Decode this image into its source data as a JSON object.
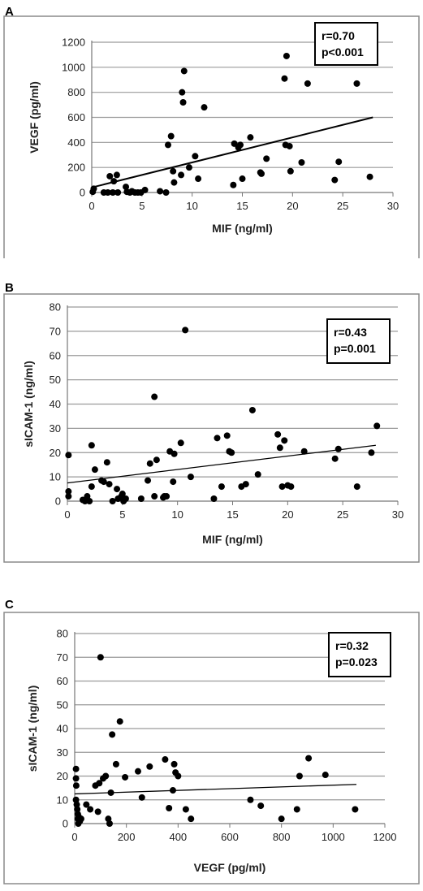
{
  "chart_data": [
    {
      "panel": "A",
      "type": "scatter",
      "xlabel": "MIF (ng/ml)",
      "ylabel": "VEGF (pg/ml)",
      "xlim": [
        0,
        30
      ],
      "ylim": [
        0,
        1200
      ],
      "xticks": [
        "0",
        "5",
        "10",
        "15",
        "20",
        "25",
        "30"
      ],
      "yticks": [
        "0",
        "200",
        "400",
        "600",
        "800",
        "1000",
        "1200"
      ],
      "grid": "horizontal",
      "annotation": [
        "r=0.70",
        "p<0.001"
      ],
      "trendline": {
        "x": [
          0,
          28
        ],
        "y": [
          40,
          600
        ]
      },
      "points": [
        [
          0.1,
          5
        ],
        [
          0.2,
          30
        ],
        [
          1.2,
          0
        ],
        [
          1.6,
          0
        ],
        [
          1.8,
          130
        ],
        [
          2.1,
          0
        ],
        [
          2.2,
          90
        ],
        [
          2.5,
          140
        ],
        [
          2.6,
          0
        ],
        [
          3.4,
          45
        ],
        [
          3.5,
          5
        ],
        [
          3.8,
          0
        ],
        [
          4.0,
          10
        ],
        [
          4.3,
          0
        ],
        [
          4.6,
          0
        ],
        [
          4.9,
          0
        ],
        [
          5.3,
          20
        ],
        [
          6.8,
          10
        ],
        [
          7.4,
          0
        ],
        [
          7.6,
          380
        ],
        [
          7.9,
          450
        ],
        [
          8.1,
          170
        ],
        [
          8.2,
          80
        ],
        [
          8.9,
          140
        ],
        [
          9.0,
          800
        ],
        [
          9.1,
          720
        ],
        [
          9.2,
          970
        ],
        [
          9.7,
          200
        ],
        [
          10.3,
          290
        ],
        [
          10.6,
          110
        ],
        [
          11.2,
          680
        ],
        [
          14.1,
          60
        ],
        [
          14.2,
          390
        ],
        [
          14.6,
          360
        ],
        [
          14.8,
          380
        ],
        [
          15.0,
          110
        ],
        [
          15.8,
          440
        ],
        [
          16.8,
          160
        ],
        [
          16.9,
          150
        ],
        [
          17.4,
          270
        ],
        [
          19.2,
          910
        ],
        [
          19.4,
          1090
        ],
        [
          19.3,
          380
        ],
        [
          19.7,
          370
        ],
        [
          19.8,
          170
        ],
        [
          20.9,
          240
        ],
        [
          21.5,
          870
        ],
        [
          24.2,
          100
        ],
        [
          24.6,
          245
        ],
        [
          26.4,
          870
        ],
        [
          27.7,
          125
        ]
      ]
    },
    {
      "panel": "B",
      "type": "scatter",
      "xlabel": "MIF (ng/ml)",
      "ylabel": "sICAM-1 (ng/ml)",
      "xlim": [
        0,
        30
      ],
      "ylim": [
        0,
        80
      ],
      "xticks": [
        "0",
        "5",
        "10",
        "15",
        "20",
        "25",
        "30"
      ],
      "yticks": [
        "0",
        "10",
        "20",
        "30",
        "40",
        "50",
        "60",
        "70",
        "80"
      ],
      "grid": "horizontal",
      "annotation": [
        "r=0.43",
        "p=0.001"
      ],
      "trendline": {
        "x": [
          0,
          28
        ],
        "y": [
          7.5,
          23
        ]
      },
      "points": [
        [
          0.1,
          19
        ],
        [
          0.1,
          4
        ],
        [
          0.1,
          2
        ],
        [
          1.4,
          0.5
        ],
        [
          1.6,
          0
        ],
        [
          1.8,
          2
        ],
        [
          2.0,
          0
        ],
        [
          2.2,
          6
        ],
        [
          2.2,
          23
        ],
        [
          2.5,
          13
        ],
        [
          3.1,
          8.5
        ],
        [
          3.3,
          8
        ],
        [
          3.6,
          16
        ],
        [
          3.8,
          7
        ],
        [
          4.1,
          0
        ],
        [
          4.5,
          5
        ],
        [
          4.6,
          1
        ],
        [
          4.9,
          2
        ],
        [
          5.0,
          3
        ],
        [
          5.1,
          0
        ],
        [
          5.3,
          1
        ],
        [
          6.7,
          1
        ],
        [
          7.3,
          8.5
        ],
        [
          7.5,
          15.5
        ],
        [
          7.9,
          43
        ],
        [
          7.9,
          2
        ],
        [
          8.1,
          17
        ],
        [
          8.7,
          1.5
        ],
        [
          8.8,
          2
        ],
        [
          9.0,
          2
        ],
        [
          9.3,
          20.5
        ],
        [
          9.6,
          8
        ],
        [
          9.7,
          19.5
        ],
        [
          10.3,
          24
        ],
        [
          10.7,
          70.5
        ],
        [
          11.2,
          10
        ],
        [
          13.3,
          1
        ],
        [
          13.6,
          26
        ],
        [
          14.0,
          6
        ],
        [
          14.5,
          27
        ],
        [
          14.7,
          20.5
        ],
        [
          14.9,
          20
        ],
        [
          15.8,
          6
        ],
        [
          16.2,
          7
        ],
        [
          16.8,
          37.5
        ],
        [
          17.3,
          11
        ],
        [
          19.1,
          27.5
        ],
        [
          19.3,
          22
        ],
        [
          19.5,
          6
        ],
        [
          19.7,
          25
        ],
        [
          20.0,
          6.5
        ],
        [
          20.3,
          6
        ],
        [
          21.5,
          20.5
        ],
        [
          24.3,
          17.5
        ],
        [
          24.6,
          21.5
        ],
        [
          26.3,
          6
        ],
        [
          27.6,
          20
        ],
        [
          28.1,
          31
        ]
      ]
    },
    {
      "panel": "C",
      "type": "scatter",
      "xlabel": "VEGF (pg/ml)",
      "ylabel": "sICAM-1 (ng/ml)",
      "xlim": [
        0,
        1200
      ],
      "ylim": [
        0,
        80
      ],
      "xticks": [
        "0",
        "200",
        "400",
        "600",
        "800",
        "1000",
        "1200"
      ],
      "yticks": [
        "0",
        "10",
        "20",
        "30",
        "40",
        "50",
        "60",
        "70",
        "80"
      ],
      "grid": "horizontal",
      "annotation": [
        "r=0.32",
        "p=0.023"
      ],
      "trendline": {
        "x": [
          0,
          1090
        ],
        "y": [
          12.5,
          16.5
        ]
      },
      "points": [
        [
          5,
          23
        ],
        [
          5,
          19
        ],
        [
          6,
          16
        ],
        [
          5,
          10
        ],
        [
          8,
          8
        ],
        [
          10,
          6
        ],
        [
          12,
          4
        ],
        [
          12,
          2
        ],
        [
          14,
          0
        ],
        [
          15,
          3
        ],
        [
          20,
          1
        ],
        [
          25,
          2
        ],
        [
          45,
          8
        ],
        [
          60,
          6
        ],
        [
          80,
          16
        ],
        [
          90,
          5
        ],
        [
          95,
          17
        ],
        [
          100,
          70
        ],
        [
          110,
          19
        ],
        [
          120,
          20
        ],
        [
          130,
          2
        ],
        [
          135,
          0
        ],
        [
          140,
          13
        ],
        [
          145,
          37.5
        ],
        [
          160,
          25
        ],
        [
          175,
          43
        ],
        [
          195,
          19.5
        ],
        [
          245,
          22
        ],
        [
          260,
          11
        ],
        [
          290,
          24
        ],
        [
          350,
          27
        ],
        [
          365,
          6.5
        ],
        [
          380,
          14
        ],
        [
          385,
          25
        ],
        [
          390,
          21.5
        ],
        [
          400,
          20
        ],
        [
          430,
          6
        ],
        [
          450,
          2
        ],
        [
          680,
          10
        ],
        [
          720,
          7.5
        ],
        [
          800,
          2
        ],
        [
          860,
          6
        ],
        [
          870,
          20
        ],
        [
          905,
          27.5
        ],
        [
          970,
          20.5
        ],
        [
          1085,
          6
        ]
      ]
    }
  ]
}
